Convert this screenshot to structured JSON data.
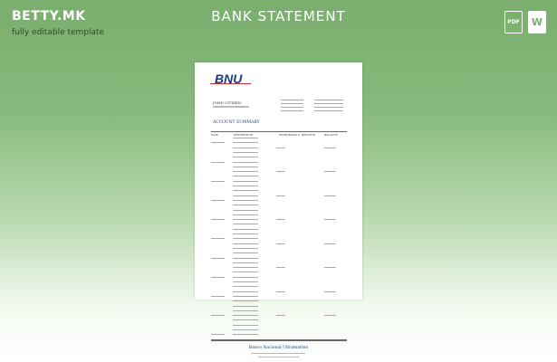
{
  "header": {
    "brand": "BETTY.MK",
    "tagline": "fully editable template",
    "title": "BANK STATEMENT",
    "icons": [
      {
        "name": "pdf-icon",
        "label": "PDF"
      },
      {
        "name": "word-icon",
        "label": "W"
      }
    ]
  },
  "document": {
    "bank_logo": "BNU",
    "account_holder": "JOHN CITIZEN",
    "section_title": "ACCOUNT SUMMARY",
    "columns": [
      "DATE",
      "DESCRIPTION",
      "WITHDRAWALS",
      "DEPOSITS",
      "BALANCE"
    ],
    "footer_bank_name": "Banco Nacional Ultramarino"
  },
  "colors": {
    "background_top": "#7aae6e",
    "accent": "#1a3a8a"
  }
}
